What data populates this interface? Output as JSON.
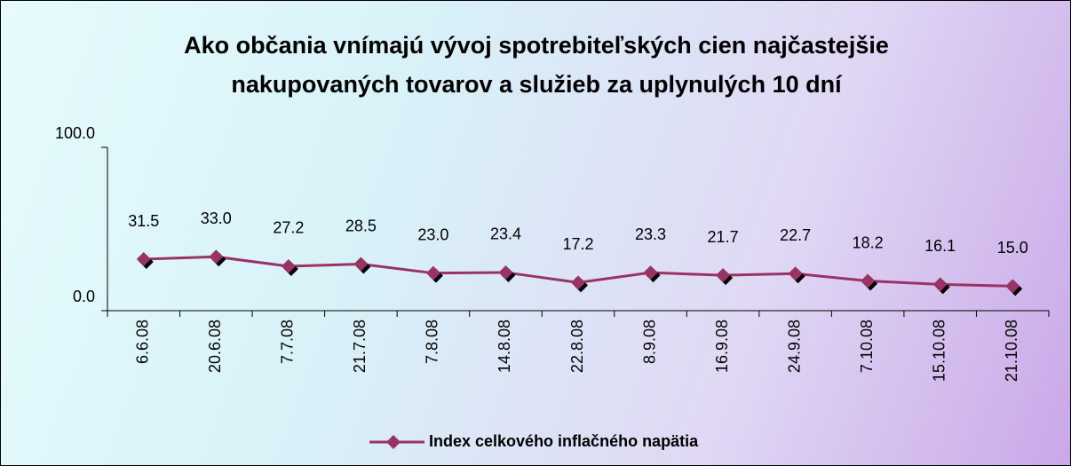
{
  "chart_data": {
    "type": "line",
    "title": "Ako občania vnímajú vývoj spotrebiteľských cien najčastejšie nakupovaných tovarov a služieb za uplynulých 10 dní",
    "categories": [
      "6.6.08",
      "20.6.08",
      "7.7.08",
      "21.7.08",
      "7.8.08",
      "14.8.08",
      "22.8.08",
      "8.9.08",
      "16.9.08",
      "24.9.08",
      "7.10.08",
      "15.10.08",
      "21.10.08"
    ],
    "series": [
      {
        "name": "Index celkového inflačného napätia",
        "color": "#993366",
        "values": [
          31.5,
          33.0,
          27.2,
          28.5,
          23.0,
          23.4,
          17.2,
          23.3,
          21.7,
          22.7,
          18.2,
          16.1,
          15.0
        ],
        "value_labels": [
          "31.5",
          "33.0",
          "27.2",
          "28.5",
          "23.0",
          "23.4",
          "17.2",
          "23.3",
          "21.7",
          "22.7",
          "18.2",
          "16.1",
          "15.0"
        ]
      }
    ],
    "ylim": [
      0,
      100
    ],
    "yticks": [
      {
        "value": 0,
        "label": "0.0"
      },
      {
        "value": 100,
        "label": "100.0"
      }
    ],
    "legend": "bottom"
  }
}
